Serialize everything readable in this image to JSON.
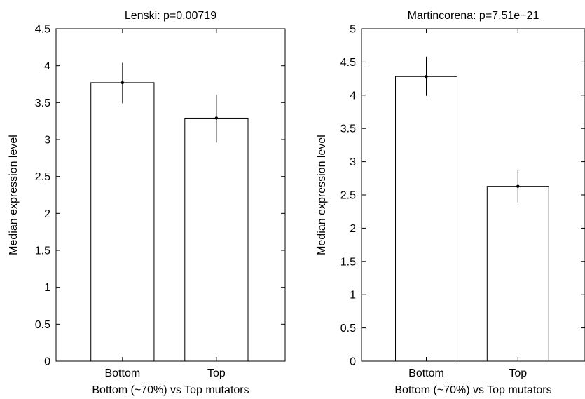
{
  "chart_data": [
    {
      "type": "bar",
      "title": "Lenski: p=0.00719",
      "xlabel": "Bottom (~70%) vs Top mutators",
      "ylabel": "Median expression level",
      "categories": [
        "Bottom",
        "Top"
      ],
      "values": [
        3.77,
        3.29
      ],
      "error_low": [
        3.49,
        2.96
      ],
      "error_high": [
        4.04,
        3.61
      ],
      "ylim": [
        0,
        4.5
      ],
      "yticks": [
        0,
        0.5,
        1,
        1.5,
        2,
        2.5,
        3,
        3.5,
        4,
        4.5
      ],
      "ytick_labels": [
        "0",
        "0.5",
        "1",
        "1.5",
        "2",
        "2.5",
        "3",
        "3.5",
        "4",
        "4.5"
      ],
      "grid": false,
      "colors": {
        "bar_fill": "#ffffff",
        "stroke": "#000000"
      }
    },
    {
      "type": "bar",
      "title": "Martincorena: p=7.51e−21",
      "xlabel": "Bottom (~70%) vs Top mutators",
      "ylabel": "Median expression level",
      "categories": [
        "Bottom",
        "Top"
      ],
      "values": [
        4.28,
        2.63
      ],
      "error_low": [
        3.99,
        2.39
      ],
      "error_high": [
        4.58,
        2.87
      ],
      "ylim": [
        0,
        5
      ],
      "yticks": [
        0,
        0.5,
        1,
        1.5,
        2,
        2.5,
        3,
        3.5,
        4,
        4.5,
        5
      ],
      "ytick_labels": [
        "0",
        "0.5",
        "1",
        "1.5",
        "2",
        "2.5",
        "3",
        "3.5",
        "4",
        "4.5",
        "5"
      ],
      "grid": false,
      "colors": {
        "bar_fill": "#ffffff",
        "stroke": "#000000"
      }
    }
  ]
}
